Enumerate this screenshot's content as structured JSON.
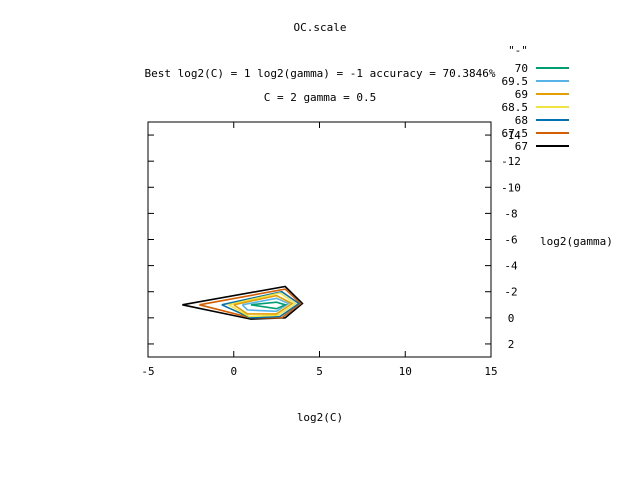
{
  "chart_data": {
    "type": "line",
    "title": "OC.scale",
    "subtitle_1": "Best log2(C) = 1  log2(gamma) = -1  accuracy = 70.3846%",
    "subtitle_2": "C = 2  gamma = 0.5",
    "xlabel": "log2(C)",
    "ylabel": "log2(gamma)",
    "xlim": [
      -5,
      15
    ],
    "ylim": [
      3,
      -15
    ],
    "y_axis_reversed": true,
    "x_ticks": [
      -5,
      0,
      5,
      10,
      15
    ],
    "y_ticks": [
      -14,
      -12,
      -10,
      -8,
      -6,
      -4,
      -2,
      0,
      2
    ],
    "grid": false,
    "legend_placement": "top-right",
    "legend_title": "\"-\"",
    "series": [
      {
        "name": "70",
        "color": "#009e73",
        "x": [
          1,
          2.5,
          3,
          2.5,
          1
        ],
        "y": [
          -1,
          -1.2,
          -1,
          -0.7,
          -1
        ]
      },
      {
        "name": "69.5",
        "color": "#56b4e9",
        "x": [
          0.5,
          2.5,
          3.2,
          2.5,
          0.8,
          0.5
        ],
        "y": [
          -1,
          -1.5,
          -1.1,
          -0.5,
          -0.6,
          -1
        ]
      },
      {
        "name": "69",
        "color": "#e69f00",
        "x": [
          0,
          2.5,
          3.4,
          2.5,
          0.8,
          0
        ],
        "y": [
          -1,
          -1.7,
          -1.1,
          -0.3,
          -0.3,
          -1
        ]
      },
      {
        "name": "68.5",
        "color": "#f0e442",
        "x": [
          -0.3,
          2.7,
          3.6,
          2.6,
          0.9,
          -0.3
        ],
        "y": [
          -1,
          -1.9,
          -1.1,
          -0.2,
          -0.1,
          -1
        ]
      },
      {
        "name": "68",
        "color": "#0072b2",
        "x": [
          -0.7,
          2.8,
          3.8,
          2.7,
          1,
          -0.7
        ],
        "y": [
          -1,
          -2,
          -1.1,
          -0.1,
          0,
          -1
        ]
      },
      {
        "name": "67.5",
        "color": "#d55e00",
        "x": [
          -2,
          3,
          3.9,
          2.8,
          1,
          -2
        ],
        "y": [
          -1,
          -2.2,
          -1.1,
          0,
          0,
          -1
        ]
      },
      {
        "name": "67",
        "color": "#000000",
        "x": [
          -3,
          3,
          4,
          3,
          1,
          -3
        ],
        "y": [
          -1,
          -2.4,
          -1.1,
          0,
          0.1,
          -1
        ]
      }
    ]
  }
}
